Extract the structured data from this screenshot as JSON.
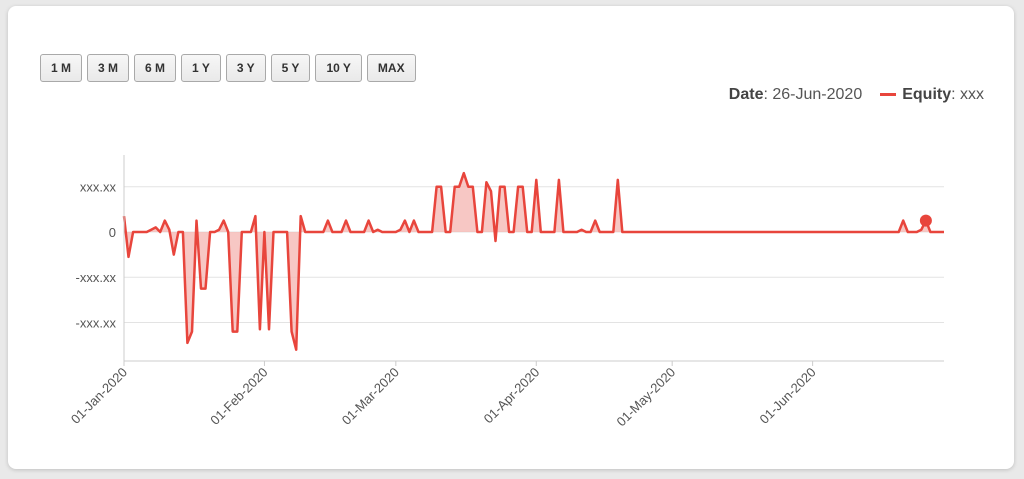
{
  "range_buttons": [
    "1 M",
    "3 M",
    "6 M",
    "1 Y",
    "3 Y",
    "5 Y",
    "10 Y",
    "MAX"
  ],
  "legend": {
    "date_label": "Date",
    "date_value": "26-Jun-2020",
    "series_label": "Equity",
    "series_value": "xxx"
  },
  "colors": {
    "line": "#e8453c",
    "fill": "#f4b4b0",
    "grid": "#e3e3e3",
    "axis": "#cccccc",
    "text": "#555555"
  },
  "chart_data": {
    "type": "area",
    "title": "",
    "xlabel": "",
    "ylabel": "",
    "grid": true,
    "legend_position": "top-right",
    "y_ticks": [
      {
        "value": 1,
        "label": "xxx.xx"
      },
      {
        "value": 0,
        "label": "0"
      },
      {
        "value": -1,
        "label": "-xxx.xx"
      },
      {
        "value": -2,
        "label": "-xxx.xx"
      }
    ],
    "ylim": [
      -2.85,
      1.7
    ],
    "xlim": [
      "2020-01-01",
      "2020-06-30"
    ],
    "x_ticks": [
      "2020-01-01",
      "2020-02-01",
      "2020-03-01",
      "2020-04-01",
      "2020-05-01",
      "2020-06-01"
    ],
    "x_tick_labels": [
      "01-Jan-2020",
      "01-Feb-2020",
      "01-Mar-2020",
      "01-Apr-2020",
      "01-May-2020",
      "01-Jun-2020"
    ],
    "highlight_point": {
      "x": "2020-06-26",
      "y": 0.25
    },
    "series": [
      {
        "name": "Equity",
        "points": [
          [
            "2020-01-01",
            0.35
          ],
          [
            "2020-01-02",
            -0.55
          ],
          [
            "2020-01-03",
            0
          ],
          [
            "2020-01-05",
            0
          ],
          [
            "2020-01-06",
            0
          ],
          [
            "2020-01-07",
            0.05
          ],
          [
            "2020-01-08",
            0.1
          ],
          [
            "2020-01-09",
            0
          ],
          [
            "2020-01-10",
            0.25
          ],
          [
            "2020-01-11",
            0.05
          ],
          [
            "2020-01-12",
            -0.5
          ],
          [
            "2020-01-13",
            0
          ],
          [
            "2020-01-14",
            0
          ],
          [
            "2020-01-15",
            -2.45
          ],
          [
            "2020-01-16",
            -2.2
          ],
          [
            "2020-01-17",
            0.25
          ],
          [
            "2020-01-18",
            -1.25
          ],
          [
            "2020-01-19",
            -1.25
          ],
          [
            "2020-01-20",
            0
          ],
          [
            "2020-01-21",
            0
          ],
          [
            "2020-01-22",
            0.05
          ],
          [
            "2020-01-23",
            0.25
          ],
          [
            "2020-01-24",
            0
          ],
          [
            "2020-01-25",
            -2.2
          ],
          [
            "2020-01-26",
            -2.2
          ],
          [
            "2020-01-27",
            0
          ],
          [
            "2020-01-28",
            0
          ],
          [
            "2020-01-29",
            0
          ],
          [
            "2020-01-30",
            0.35
          ],
          [
            "2020-01-31",
            -2.15
          ],
          [
            "2020-02-01",
            0
          ],
          [
            "2020-02-02",
            -2.15
          ],
          [
            "2020-02-03",
            0
          ],
          [
            "2020-02-04",
            0
          ],
          [
            "2020-02-05",
            0
          ],
          [
            "2020-02-06",
            0
          ],
          [
            "2020-02-07",
            -2.2
          ],
          [
            "2020-02-08",
            -2.6
          ],
          [
            "2020-02-09",
            0.35
          ],
          [
            "2020-02-10",
            0
          ],
          [
            "2020-02-14",
            0
          ],
          [
            "2020-02-15",
            0.25
          ],
          [
            "2020-02-16",
            0
          ],
          [
            "2020-02-18",
            0
          ],
          [
            "2020-02-19",
            0.25
          ],
          [
            "2020-02-20",
            0
          ],
          [
            "2020-02-23",
            0
          ],
          [
            "2020-02-24",
            0.25
          ],
          [
            "2020-02-25",
            0
          ],
          [
            "2020-02-26",
            0.05
          ],
          [
            "2020-02-27",
            0
          ],
          [
            "2020-03-01",
            0
          ],
          [
            "2020-03-02",
            0.05
          ],
          [
            "2020-03-03",
            0.25
          ],
          [
            "2020-03-04",
            0
          ],
          [
            "2020-03-05",
            0.25
          ],
          [
            "2020-03-06",
            0
          ],
          [
            "2020-03-09",
            0
          ],
          [
            "2020-03-10",
            1.0
          ],
          [
            "2020-03-11",
            1.0
          ],
          [
            "2020-03-12",
            0
          ],
          [
            "2020-03-13",
            0
          ],
          [
            "2020-03-14",
            1.0
          ],
          [
            "2020-03-15",
            1.0
          ],
          [
            "2020-03-16",
            1.3
          ],
          [
            "2020-03-17",
            1.0
          ],
          [
            "2020-03-18",
            1.0
          ],
          [
            "2020-03-19",
            0
          ],
          [
            "2020-03-20",
            0
          ],
          [
            "2020-03-21",
            1.1
          ],
          [
            "2020-03-22",
            0.9
          ],
          [
            "2020-03-23",
            -0.2
          ],
          [
            "2020-03-24",
            1.0
          ],
          [
            "2020-03-25",
            1.0
          ],
          [
            "2020-03-26",
            0
          ],
          [
            "2020-03-27",
            0
          ],
          [
            "2020-03-28",
            1.0
          ],
          [
            "2020-03-29",
            1.0
          ],
          [
            "2020-03-30",
            0
          ],
          [
            "2020-03-31",
            0
          ],
          [
            "2020-04-01",
            1.15
          ],
          [
            "2020-04-02",
            0
          ],
          [
            "2020-04-03",
            0
          ],
          [
            "2020-04-04",
            0
          ],
          [
            "2020-04-05",
            0
          ],
          [
            "2020-04-06",
            1.15
          ],
          [
            "2020-04-07",
            0
          ],
          [
            "2020-04-08",
            0
          ],
          [
            "2020-04-10",
            0
          ],
          [
            "2020-04-11",
            0.05
          ],
          [
            "2020-04-12",
            0
          ],
          [
            "2020-04-13",
            0
          ],
          [
            "2020-04-14",
            0.25
          ],
          [
            "2020-04-15",
            0
          ],
          [
            "2020-04-16",
            0
          ],
          [
            "2020-04-17",
            0
          ],
          [
            "2020-04-18",
            0
          ],
          [
            "2020-04-19",
            1.15
          ],
          [
            "2020-04-20",
            0
          ],
          [
            "2020-06-20",
            0
          ],
          [
            "2020-06-21",
            0.25
          ],
          [
            "2020-06-22",
            0
          ],
          [
            "2020-06-24",
            0
          ],
          [
            "2020-06-25",
            0.05
          ],
          [
            "2020-06-26",
            0.25
          ],
          [
            "2020-06-27",
            0
          ],
          [
            "2020-06-30",
            0
          ]
        ]
      }
    ]
  }
}
